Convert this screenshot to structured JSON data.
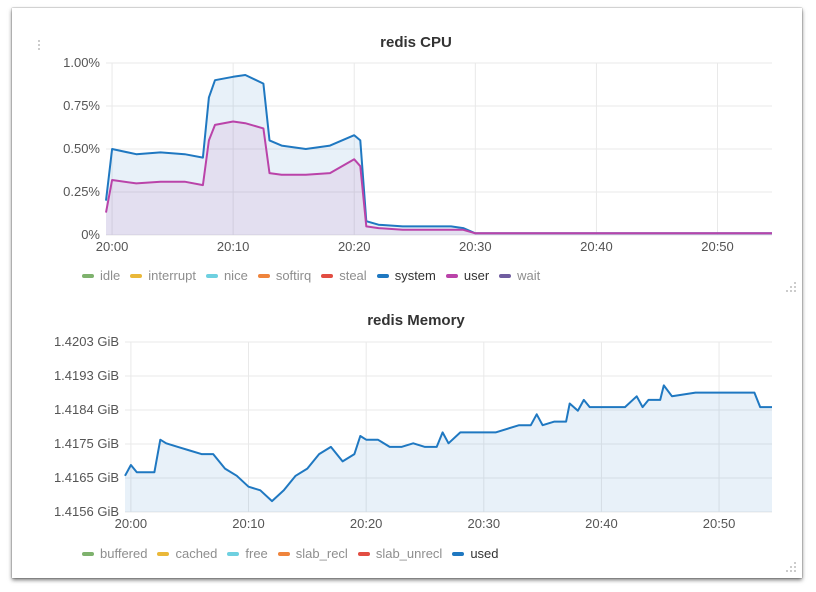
{
  "panels": [
    {
      "title": "redis CPU",
      "legend": [
        {
          "label": "idle",
          "color": "#7eb26d",
          "active": false
        },
        {
          "label": "interrupt",
          "color": "#eab839",
          "active": false
        },
        {
          "label": "nice",
          "color": "#6ed0e0",
          "active": false
        },
        {
          "label": "softirq",
          "color": "#ef843c",
          "active": false
        },
        {
          "label": "steal",
          "color": "#e24d42",
          "active": false
        },
        {
          "label": "system",
          "color": "#1f78c1",
          "active": true
        },
        {
          "label": "user",
          "color": "#ba43a9",
          "active": true
        },
        {
          "label": "wait",
          "color": "#705da0",
          "active": false
        }
      ]
    },
    {
      "title": "redis Memory",
      "legend": [
        {
          "label": "buffered",
          "color": "#7eb26d",
          "active": false
        },
        {
          "label": "cached",
          "color": "#eab839",
          "active": false
        },
        {
          "label": "free",
          "color": "#6ed0e0",
          "active": false
        },
        {
          "label": "slab_recl",
          "color": "#ef843c",
          "active": false
        },
        {
          "label": "slab_unrecl",
          "color": "#e24d42",
          "active": false
        },
        {
          "label": "used",
          "color": "#1f78c1",
          "active": true
        }
      ]
    }
  ],
  "chart_data": [
    {
      "type": "line",
      "title": "redis CPU",
      "x_ticks": [
        "20:00",
        "20:10",
        "20:20",
        "20:30",
        "20:40",
        "20:50"
      ],
      "y_ticks": [
        "0%",
        "0.25%",
        "0.50%",
        "0.75%",
        "1.00%"
      ],
      "ylim": [
        0,
        1.0
      ],
      "xlim_minutes": [
        -0.5,
        54.5
      ],
      "grid": true,
      "legend_position": "bottom",
      "series": [
        {
          "name": "system",
          "color": "#1f78c1",
          "x": [
            -0.5,
            0,
            2,
            4,
            6,
            7.5,
            8,
            8.5,
            10,
            11,
            12.5,
            13,
            14,
            16,
            18,
            20,
            20.5,
            21,
            22,
            24,
            26,
            28,
            29,
            30,
            35,
            40,
            45,
            50,
            54.5
          ],
          "values": [
            0.2,
            0.5,
            0.47,
            0.48,
            0.47,
            0.45,
            0.8,
            0.9,
            0.92,
            0.93,
            0.88,
            0.55,
            0.52,
            0.5,
            0.52,
            0.58,
            0.55,
            0.08,
            0.06,
            0.05,
            0.05,
            0.05,
            0.04,
            0.01,
            0.01,
            0.01,
            0.01,
            0.01,
            0.01
          ]
        },
        {
          "name": "user",
          "color": "#ba43a9",
          "x": [
            -0.5,
            0,
            2,
            4,
            6,
            7.5,
            8,
            8.5,
            10,
            11,
            12.5,
            13,
            14,
            16,
            18,
            20,
            20.5,
            21,
            22,
            24,
            26,
            28,
            29,
            30,
            35,
            40,
            45,
            50,
            54.5
          ],
          "values": [
            0.13,
            0.32,
            0.3,
            0.31,
            0.31,
            0.29,
            0.55,
            0.64,
            0.66,
            0.65,
            0.62,
            0.36,
            0.35,
            0.35,
            0.36,
            0.44,
            0.4,
            0.05,
            0.04,
            0.03,
            0.03,
            0.03,
            0.03,
            0.01,
            0.01,
            0.01,
            0.01,
            0.01,
            0.01
          ]
        }
      ]
    },
    {
      "type": "line",
      "title": "redis Memory",
      "x_ticks": [
        "20:00",
        "20:10",
        "20:20",
        "20:30",
        "20:40",
        "20:50"
      ],
      "y_ticks": [
        "1.4156 GiB",
        "1.4165 GiB",
        "1.4175 GiB",
        "1.4184 GiB",
        "1.4193 GiB",
        "1.4203 GiB"
      ],
      "ylim": [
        1.4156,
        1.4203
      ],
      "xlim_minutes": [
        -0.5,
        54.5
      ],
      "grid": true,
      "legend_position": "bottom",
      "series": [
        {
          "name": "used",
          "color": "#1f78c1",
          "x": [
            -0.5,
            0,
            0.5,
            1,
            2,
            2.5,
            3,
            4,
            5,
            6,
            7,
            8,
            9,
            10,
            11,
            12,
            13,
            14,
            15,
            16,
            17,
            18,
            19,
            19.5,
            20,
            21,
            22,
            23,
            24,
            25,
            26,
            26.5,
            27,
            28,
            29,
            31,
            33,
            34,
            34.5,
            35,
            36,
            37,
            37.3,
            38,
            38.5,
            39,
            40,
            42,
            43,
            43.5,
            44,
            45,
            45.3,
            46,
            48,
            50,
            52,
            53,
            53.5,
            54.5
          ],
          "values": [
            1.4166,
            1.4169,
            1.4167,
            1.4167,
            1.4167,
            1.4176,
            1.4175,
            1.4174,
            1.4173,
            1.4172,
            1.4172,
            1.4168,
            1.4166,
            1.4163,
            1.4162,
            1.4159,
            1.4162,
            1.4166,
            1.4168,
            1.4172,
            1.4174,
            1.417,
            1.4172,
            1.4177,
            1.4176,
            1.4176,
            1.4174,
            1.4174,
            1.4175,
            1.4174,
            1.4174,
            1.4178,
            1.4175,
            1.4178,
            1.4178,
            1.4178,
            1.418,
            1.418,
            1.4183,
            1.418,
            1.4181,
            1.4181,
            1.4186,
            1.4184,
            1.4187,
            1.4185,
            1.4185,
            1.4185,
            1.4188,
            1.4185,
            1.4187,
            1.4187,
            1.4191,
            1.4188,
            1.4189,
            1.4189,
            1.4189,
            1.4189,
            1.4185,
            1.4185
          ]
        }
      ]
    }
  ]
}
